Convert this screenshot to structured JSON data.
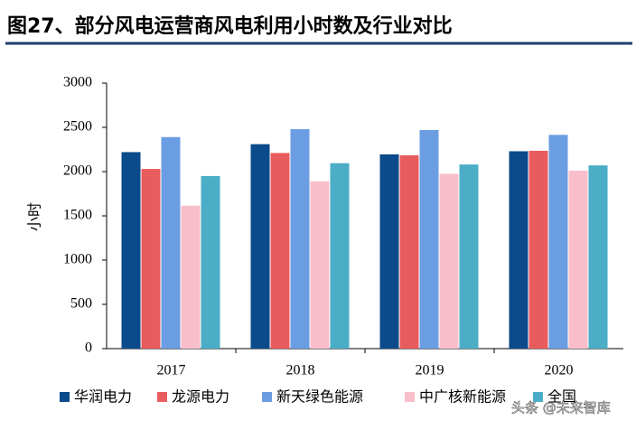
{
  "chart_data": {
    "type": "bar",
    "title": "图27、部分风电运营商风电利用小时数及行业对比",
    "y_label": "小时",
    "categories": [
      "2017",
      "2018",
      "2019",
      "2020"
    ],
    "series": [
      {
        "name": "华润电力",
        "color": "#0b4a8b",
        "values": [
          2220,
          2310,
          2195,
          2230
        ]
      },
      {
        "name": "龙源电力",
        "color": "#e95c5e",
        "values": [
          2030,
          2210,
          2185,
          2235
        ]
      },
      {
        "name": "新天绿色能源",
        "color": "#6b9de2",
        "values": [
          2390,
          2480,
          2470,
          2415
        ]
      },
      {
        "name": "中广核新能源",
        "color": "#f8bfca",
        "values": [
          1615,
          1890,
          1975,
          2010
        ]
      },
      {
        "name": "全国",
        "color": "#4badc6",
        "values": [
          1950,
          2095,
          2080,
          2070
        ]
      }
    ],
    "ylim": [
      0,
      3000
    ],
    "yticks": [
      0,
      500,
      1000,
      1500,
      2000,
      2500,
      3000
    ],
    "grid": false,
    "legend": "bottom",
    "watermark": "头条 @未来智库"
  }
}
